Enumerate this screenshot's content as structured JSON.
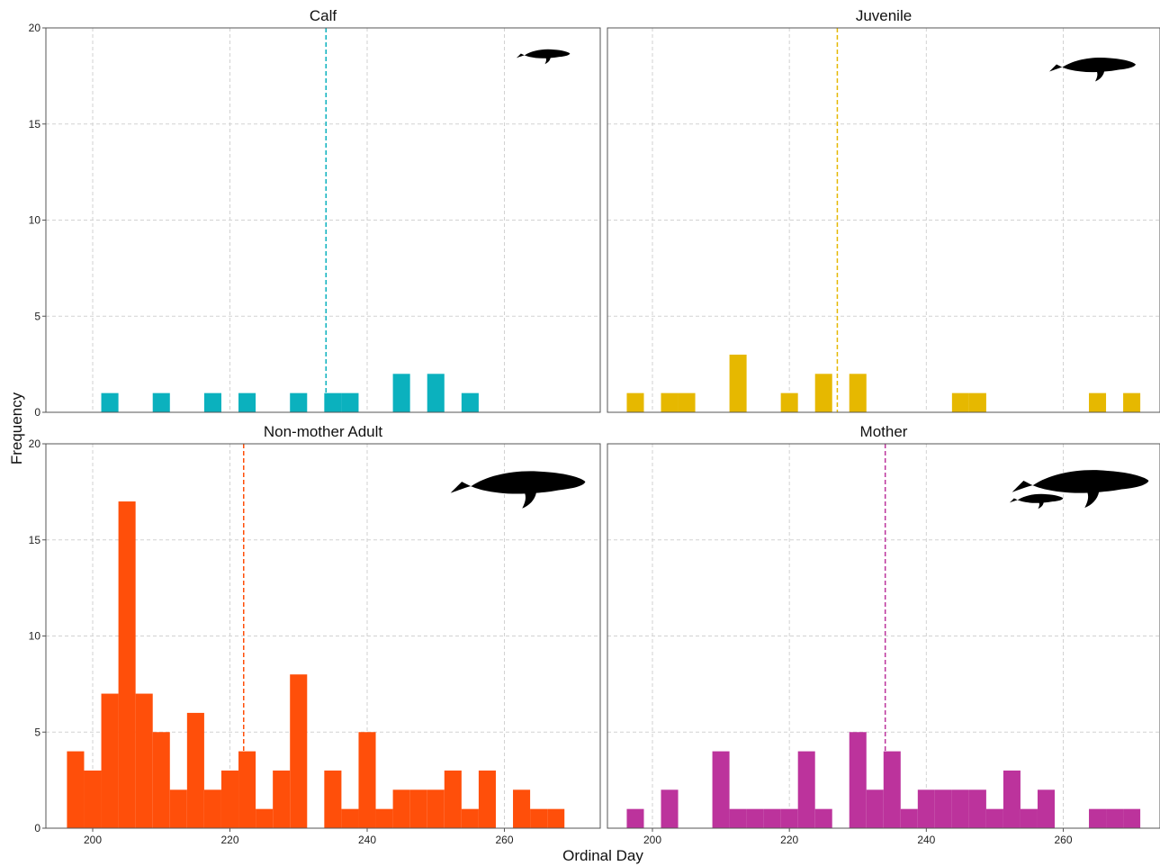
{
  "chart_data": {
    "type": "bar",
    "xlabel": "Ordinal Day",
    "ylabel": "Frequency",
    "xticks": [
      200,
      220,
      240,
      260
    ],
    "yticks": [
      0,
      5,
      10,
      15,
      20
    ],
    "xlim": [
      193,
      275
    ],
    "ylim": [
      0,
      20
    ],
    "bin_width": 2.5,
    "grid": true,
    "panels": [
      {
        "title": "Calf",
        "color": "#0bb1be",
        "icon": "whale-calf-icon",
        "mean_line": 234,
        "bins": [
          [
            202.5,
            1
          ],
          [
            210,
            1
          ],
          [
            217.5,
            1
          ],
          [
            222.5,
            1
          ],
          [
            230,
            1
          ],
          [
            235,
            1
          ],
          [
            237.5,
            1
          ],
          [
            245,
            2
          ],
          [
            250,
            2
          ],
          [
            255,
            1
          ]
        ]
      },
      {
        "title": "Juvenile",
        "color": "#e6b800",
        "icon": "whale-juvenile-icon",
        "mean_line": 227,
        "bins": [
          [
            197.5,
            1
          ],
          [
            202.5,
            1
          ],
          [
            205,
            1
          ],
          [
            212.5,
            3
          ],
          [
            220,
            1
          ],
          [
            225,
            2
          ],
          [
            230,
            2
          ],
          [
            245,
            1
          ],
          [
            247.5,
            1
          ],
          [
            265,
            1
          ],
          [
            270,
            1
          ]
        ]
      },
      {
        "title": "Non-mother Adult",
        "color": "#ff4f0a",
        "icon": "whale-adult-icon",
        "mean_line": 222,
        "bins": [
          [
            197.5,
            4
          ],
          [
            200,
            3
          ],
          [
            202.5,
            7
          ],
          [
            205,
            17
          ],
          [
            207.5,
            7
          ],
          [
            210,
            5
          ],
          [
            212.5,
            2
          ],
          [
            215,
            6
          ],
          [
            217.5,
            2
          ],
          [
            220,
            3
          ],
          [
            222.5,
            4
          ],
          [
            225,
            1
          ],
          [
            227.5,
            3
          ],
          [
            230,
            8
          ],
          [
            235,
            3
          ],
          [
            237.5,
            1
          ],
          [
            240,
            5
          ],
          [
            242.5,
            1
          ],
          [
            245,
            2
          ],
          [
            247.5,
            2
          ],
          [
            250,
            2
          ],
          [
            252.5,
            3
          ],
          [
            255,
            1
          ],
          [
            257.5,
            3
          ],
          [
            262.5,
            2
          ],
          [
            265,
            1
          ],
          [
            267.5,
            1
          ]
        ]
      },
      {
        "title": "Mother",
        "color": "#bc339c",
        "icon": "whale-mother-calf-icon",
        "mean_line": 234,
        "bins": [
          [
            197.5,
            1
          ],
          [
            202.5,
            2
          ],
          [
            210,
            4
          ],
          [
            212.5,
            1
          ],
          [
            215,
            1
          ],
          [
            217.5,
            1
          ],
          [
            220,
            1
          ],
          [
            222.5,
            4
          ],
          [
            225,
            1
          ],
          [
            230,
            5
          ],
          [
            232.5,
            2
          ],
          [
            235,
            4
          ],
          [
            237.5,
            1
          ],
          [
            240,
            2
          ],
          [
            242.5,
            2
          ],
          [
            245,
            2
          ],
          [
            247.5,
            2
          ],
          [
            250,
            1
          ],
          [
            252.5,
            3
          ],
          [
            255,
            1
          ],
          [
            257.5,
            2
          ],
          [
            265,
            1
          ],
          [
            267.5,
            1
          ],
          [
            270,
            1
          ]
        ]
      }
    ]
  }
}
